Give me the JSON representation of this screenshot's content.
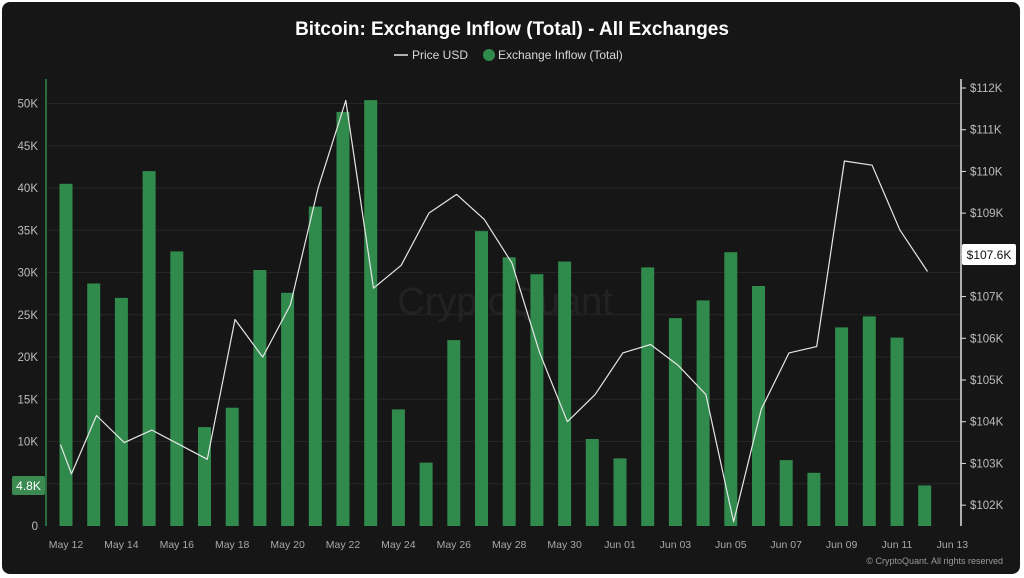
{
  "chart_data": {
    "type": "bar",
    "title": "Bitcoin: Exchange Inflow (Total) - All Exchanges",
    "legend": [
      {
        "name": "Price USD",
        "marker": "line",
        "color": "#e6e6e6"
      },
      {
        "name": "Exchange Inflow (Total)",
        "marker": "dot",
        "color": "#2f8a4b"
      }
    ],
    "legend_position": "top-center",
    "x_tick_labels": [
      "May 12",
      "May 14",
      "May 16",
      "May 18",
      "May 20",
      "May 22",
      "May 24",
      "May 26",
      "May 28",
      "May 30",
      "Jun 01",
      "Jun 03",
      "Jun 05",
      "Jun 07",
      "Jun 09",
      "Jun 11",
      "Jun 13"
    ],
    "y_left": {
      "ticks": [
        "0",
        "5K",
        "10K",
        "15K",
        "20K",
        "25K",
        "30K",
        "35K",
        "40K",
        "45K",
        "50K"
      ],
      "range": [
        0,
        50000
      ]
    },
    "y_right": {
      "ticks": [
        "$102K",
        "$103K",
        "$104K",
        "$105K",
        "$106K",
        "$107K",
        "$108K",
        "$109K",
        "$110K",
        "$111K",
        "$112K"
      ],
      "range": [
        101500,
        112000
      ]
    },
    "series": [
      {
        "name": "Exchange Inflow (Total)",
        "kind": "bar",
        "color": "#2f8a4b",
        "axis": "left",
        "x": [
          0,
          1,
          2,
          3,
          4,
          5,
          6,
          7,
          8,
          9,
          10,
          11,
          12,
          13,
          14,
          15,
          16,
          17,
          18,
          19,
          20,
          21,
          22,
          23,
          24,
          25,
          26,
          27,
          28,
          29,
          30,
          31
        ],
        "values": [
          40500,
          28700,
          27000,
          42000,
          32500,
          11700,
          14000,
          30300,
          27600,
          37800,
          49000,
          50400,
          13800,
          7500,
          22000,
          34900,
          31800,
          29800,
          31300,
          10300,
          8000,
          30600,
          24600,
          26700,
          32400,
          28400,
          7800,
          6300,
          23500,
          24800,
          22300,
          4800
        ]
      },
      {
        "name": "Price USD",
        "kind": "line",
        "color": "#e6e6e6",
        "axis": "right",
        "x": [
          -0.2,
          0.2,
          1.1,
          2.1,
          3.1,
          4.1,
          5.1,
          6.1,
          7.1,
          8.1,
          9.1,
          10.1,
          11.1,
          12.1,
          13.1,
          14.1,
          15.1,
          16.1,
          17.1,
          18.1,
          19.1,
          20.1,
          21.1,
          22.1,
          23.1,
          24.1,
          25.1,
          26.1,
          27.1,
          28.1,
          29.1,
          30.1,
          31.1
        ],
        "values": [
          103450,
          102750,
          104150,
          103500,
          103800,
          103450,
          103100,
          106450,
          105550,
          106800,
          109600,
          111700,
          107200,
          107750,
          109000,
          109450,
          108850,
          107800,
          105650,
          104000,
          104650,
          105650,
          105850,
          105350,
          104650,
          101600,
          104300,
          105650,
          105800,
          110250,
          110150,
          108600,
          107600
        ]
      }
    ],
    "current_value_labels": {
      "inflow": "4.8K",
      "price": "$107.6K"
    },
    "watermark": "CryptoQuant",
    "credit": "© CryptoQuant. All rights reserved",
    "grid": true
  }
}
